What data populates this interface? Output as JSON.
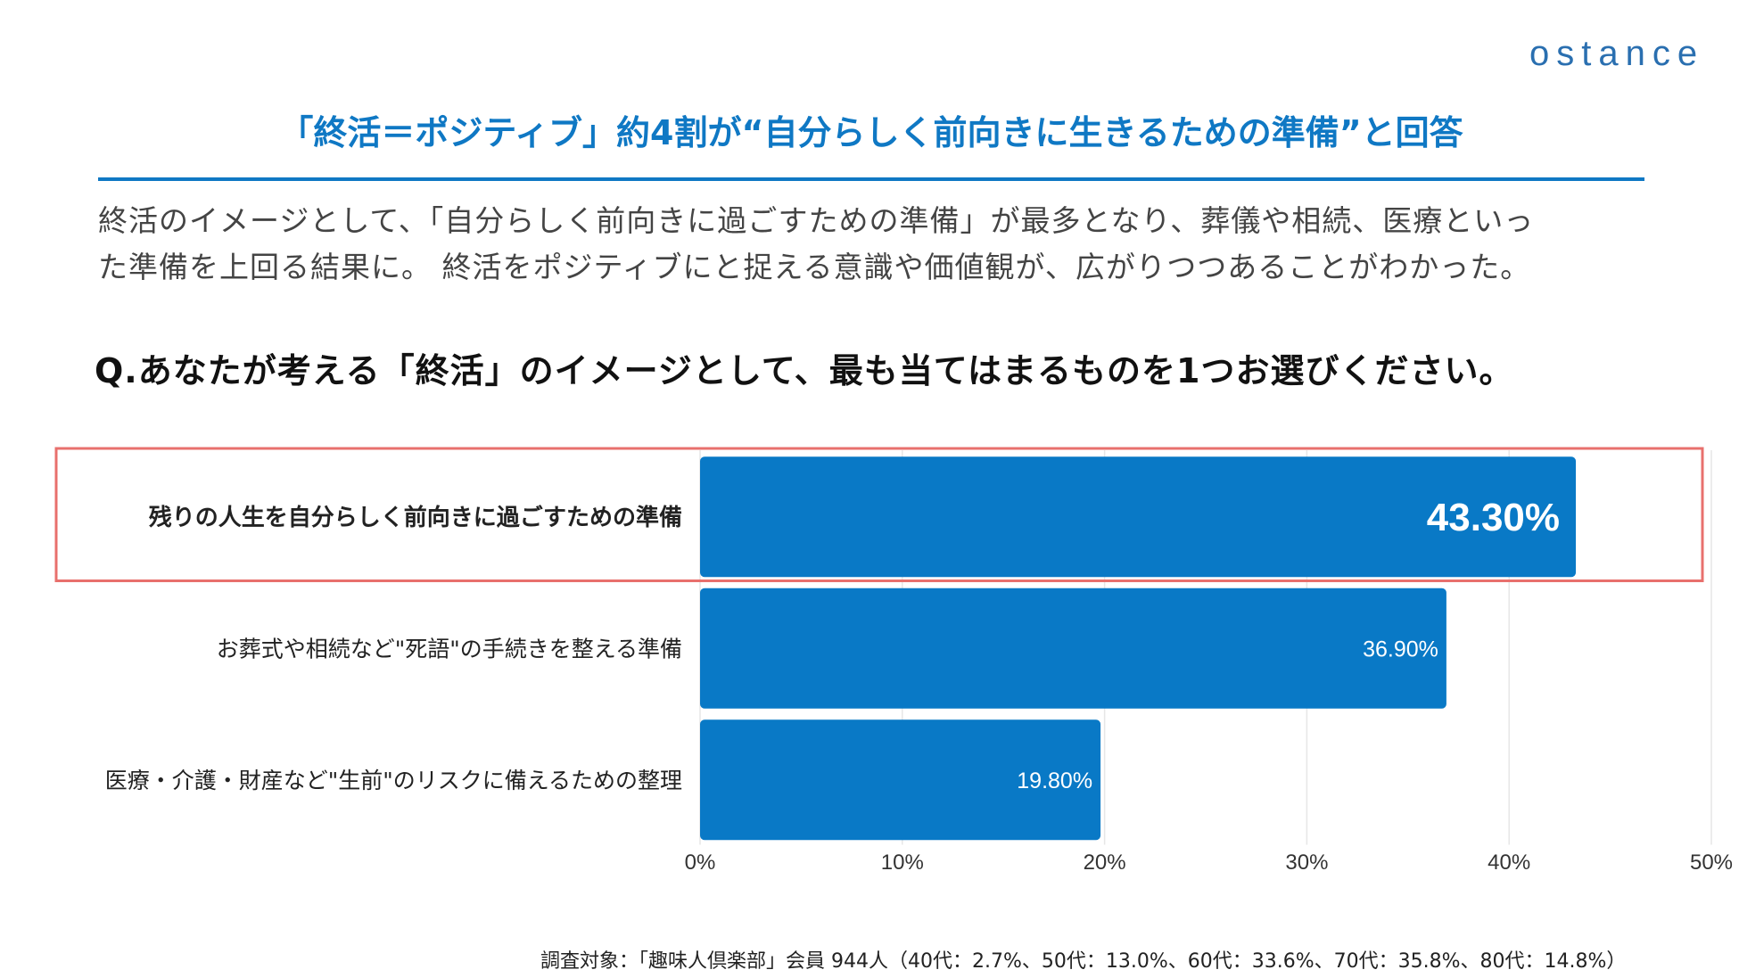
{
  "logo": "ostance",
  "title": "「終活＝ポジティブ」約4割が“自分らしく前向きに生きるための準備”と回答",
  "description": [
    "終活のイメージとして、「自分らしく前向きに過ごすための準備」が最多となり、葬儀や相続、医療といっ",
    "た準備を上回る結果に。 終活をポジティブにと捉える意識や価値観が、広がりつつあることがわかった。"
  ],
  "question": "Q.あなたが考える「終活」のイメージとして、最も当てはまるものを1つお選びください。",
  "footnote": "調査対象：「趣味人倶楽部」会員 944人（40代：2.7%、50代：13.0%、60代：33.6%、70代：35.8%、80代：14.8%）",
  "colors": {
    "accent": "#0f78c4",
    "bar": "#0979c6",
    "highlight_box": "#e8706d"
  },
  "chart_data": {
    "type": "bar",
    "orientation": "horizontal",
    "categories": [
      "残りの人生を自分らしく前向きに過ごすための準備",
      "お葬式や相続など\"死語\"の手続きを整える準備",
      "医療・介護・財産など\"生前\"のリスクに備えるための整理"
    ],
    "values": [
      43.3,
      36.9,
      19.8
    ],
    "data_labels": [
      "43.30%",
      "36.90%",
      "19.80%"
    ],
    "xlim": [
      0,
      50
    ],
    "x_ticks": [
      "0%",
      "10%",
      "20%",
      "30%",
      "40%",
      "50%"
    ],
    "grid": true,
    "highlighted_category": 0
  }
}
